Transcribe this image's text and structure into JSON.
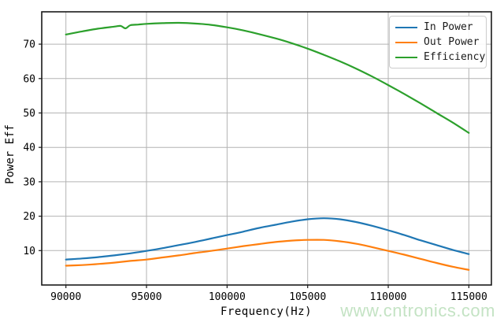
{
  "watermark": {
    "text": "www.cntronics.com",
    "color": "#c4e3c4"
  },
  "chart_data": {
    "type": "line",
    "title": "",
    "xlabel": "Frequency(Hz)",
    "ylabel": "Power Eff",
    "xlim": [
      88500,
      116400
    ],
    "ylim": [
      0,
      79.4
    ],
    "xticks": [
      90000,
      95000,
      100000,
      105000,
      110000,
      115000
    ],
    "yticks": [
      10,
      20,
      30,
      40,
      50,
      60,
      70
    ],
    "grid": true,
    "grid_color": "#b3b3b3",
    "spine_color": "#1a1a1a",
    "tick_label_color": "#000000",
    "legend_position": "upper right",
    "series": [
      {
        "name": "In Power",
        "color": "#1f77b4",
        "x": [
          90000,
          91000,
          92000,
          93000,
          94000,
          95000,
          96000,
          97000,
          98000,
          99000,
          100000,
          101000,
          102000,
          103000,
          104000,
          105000,
          106000,
          107000,
          108000,
          109000,
          110000,
          111000,
          112000,
          113000,
          114000,
          115000
        ],
        "values": [
          7.4,
          7.7,
          8.1,
          8.6,
          9.2,
          9.9,
          10.7,
          11.6,
          12.5,
          13.5,
          14.5,
          15.5,
          16.6,
          17.5,
          18.4,
          19.1,
          19.4,
          19.1,
          18.3,
          17.2,
          15.9,
          14.5,
          13.0,
          11.6,
          10.2,
          9.0
        ]
      },
      {
        "name": "Out Power",
        "color": "#ff7f0e",
        "x": [
          90000,
          91000,
          92000,
          93000,
          94000,
          95000,
          96000,
          97000,
          98000,
          99000,
          100000,
          101000,
          102000,
          103000,
          104000,
          105000,
          106000,
          107000,
          108000,
          109000,
          110000,
          111000,
          112000,
          113000,
          114000,
          115000
        ],
        "values": [
          5.6,
          5.8,
          6.1,
          6.5,
          7.0,
          7.4,
          8.0,
          8.6,
          9.3,
          9.9,
          10.6,
          11.3,
          11.9,
          12.5,
          12.9,
          13.1,
          13.1,
          12.7,
          12.0,
          11.0,
          9.9,
          8.8,
          7.6,
          6.4,
          5.3,
          4.4
        ]
      },
      {
        "name": "Efficiency",
        "color": "#2ca02c",
        "x": [
          90000,
          91000,
          92000,
          93000,
          93400,
          93700,
          94000,
          94500,
          95000,
          96000,
          97000,
          98000,
          99000,
          100000,
          101000,
          102000,
          103000,
          104000,
          105000,
          106000,
          107000,
          108000,
          109000,
          110000,
          111000,
          112000,
          113000,
          114000,
          115000
        ],
        "values": [
          72.8,
          73.7,
          74.5,
          75.1,
          75.3,
          74.6,
          75.5,
          75.7,
          75.9,
          76.1,
          76.2,
          76.0,
          75.6,
          74.9,
          74.0,
          72.9,
          71.7,
          70.3,
          68.7,
          66.9,
          65.0,
          62.9,
          60.6,
          58.1,
          55.5,
          52.8,
          50.0,
          47.2,
          44.2
        ]
      }
    ]
  }
}
